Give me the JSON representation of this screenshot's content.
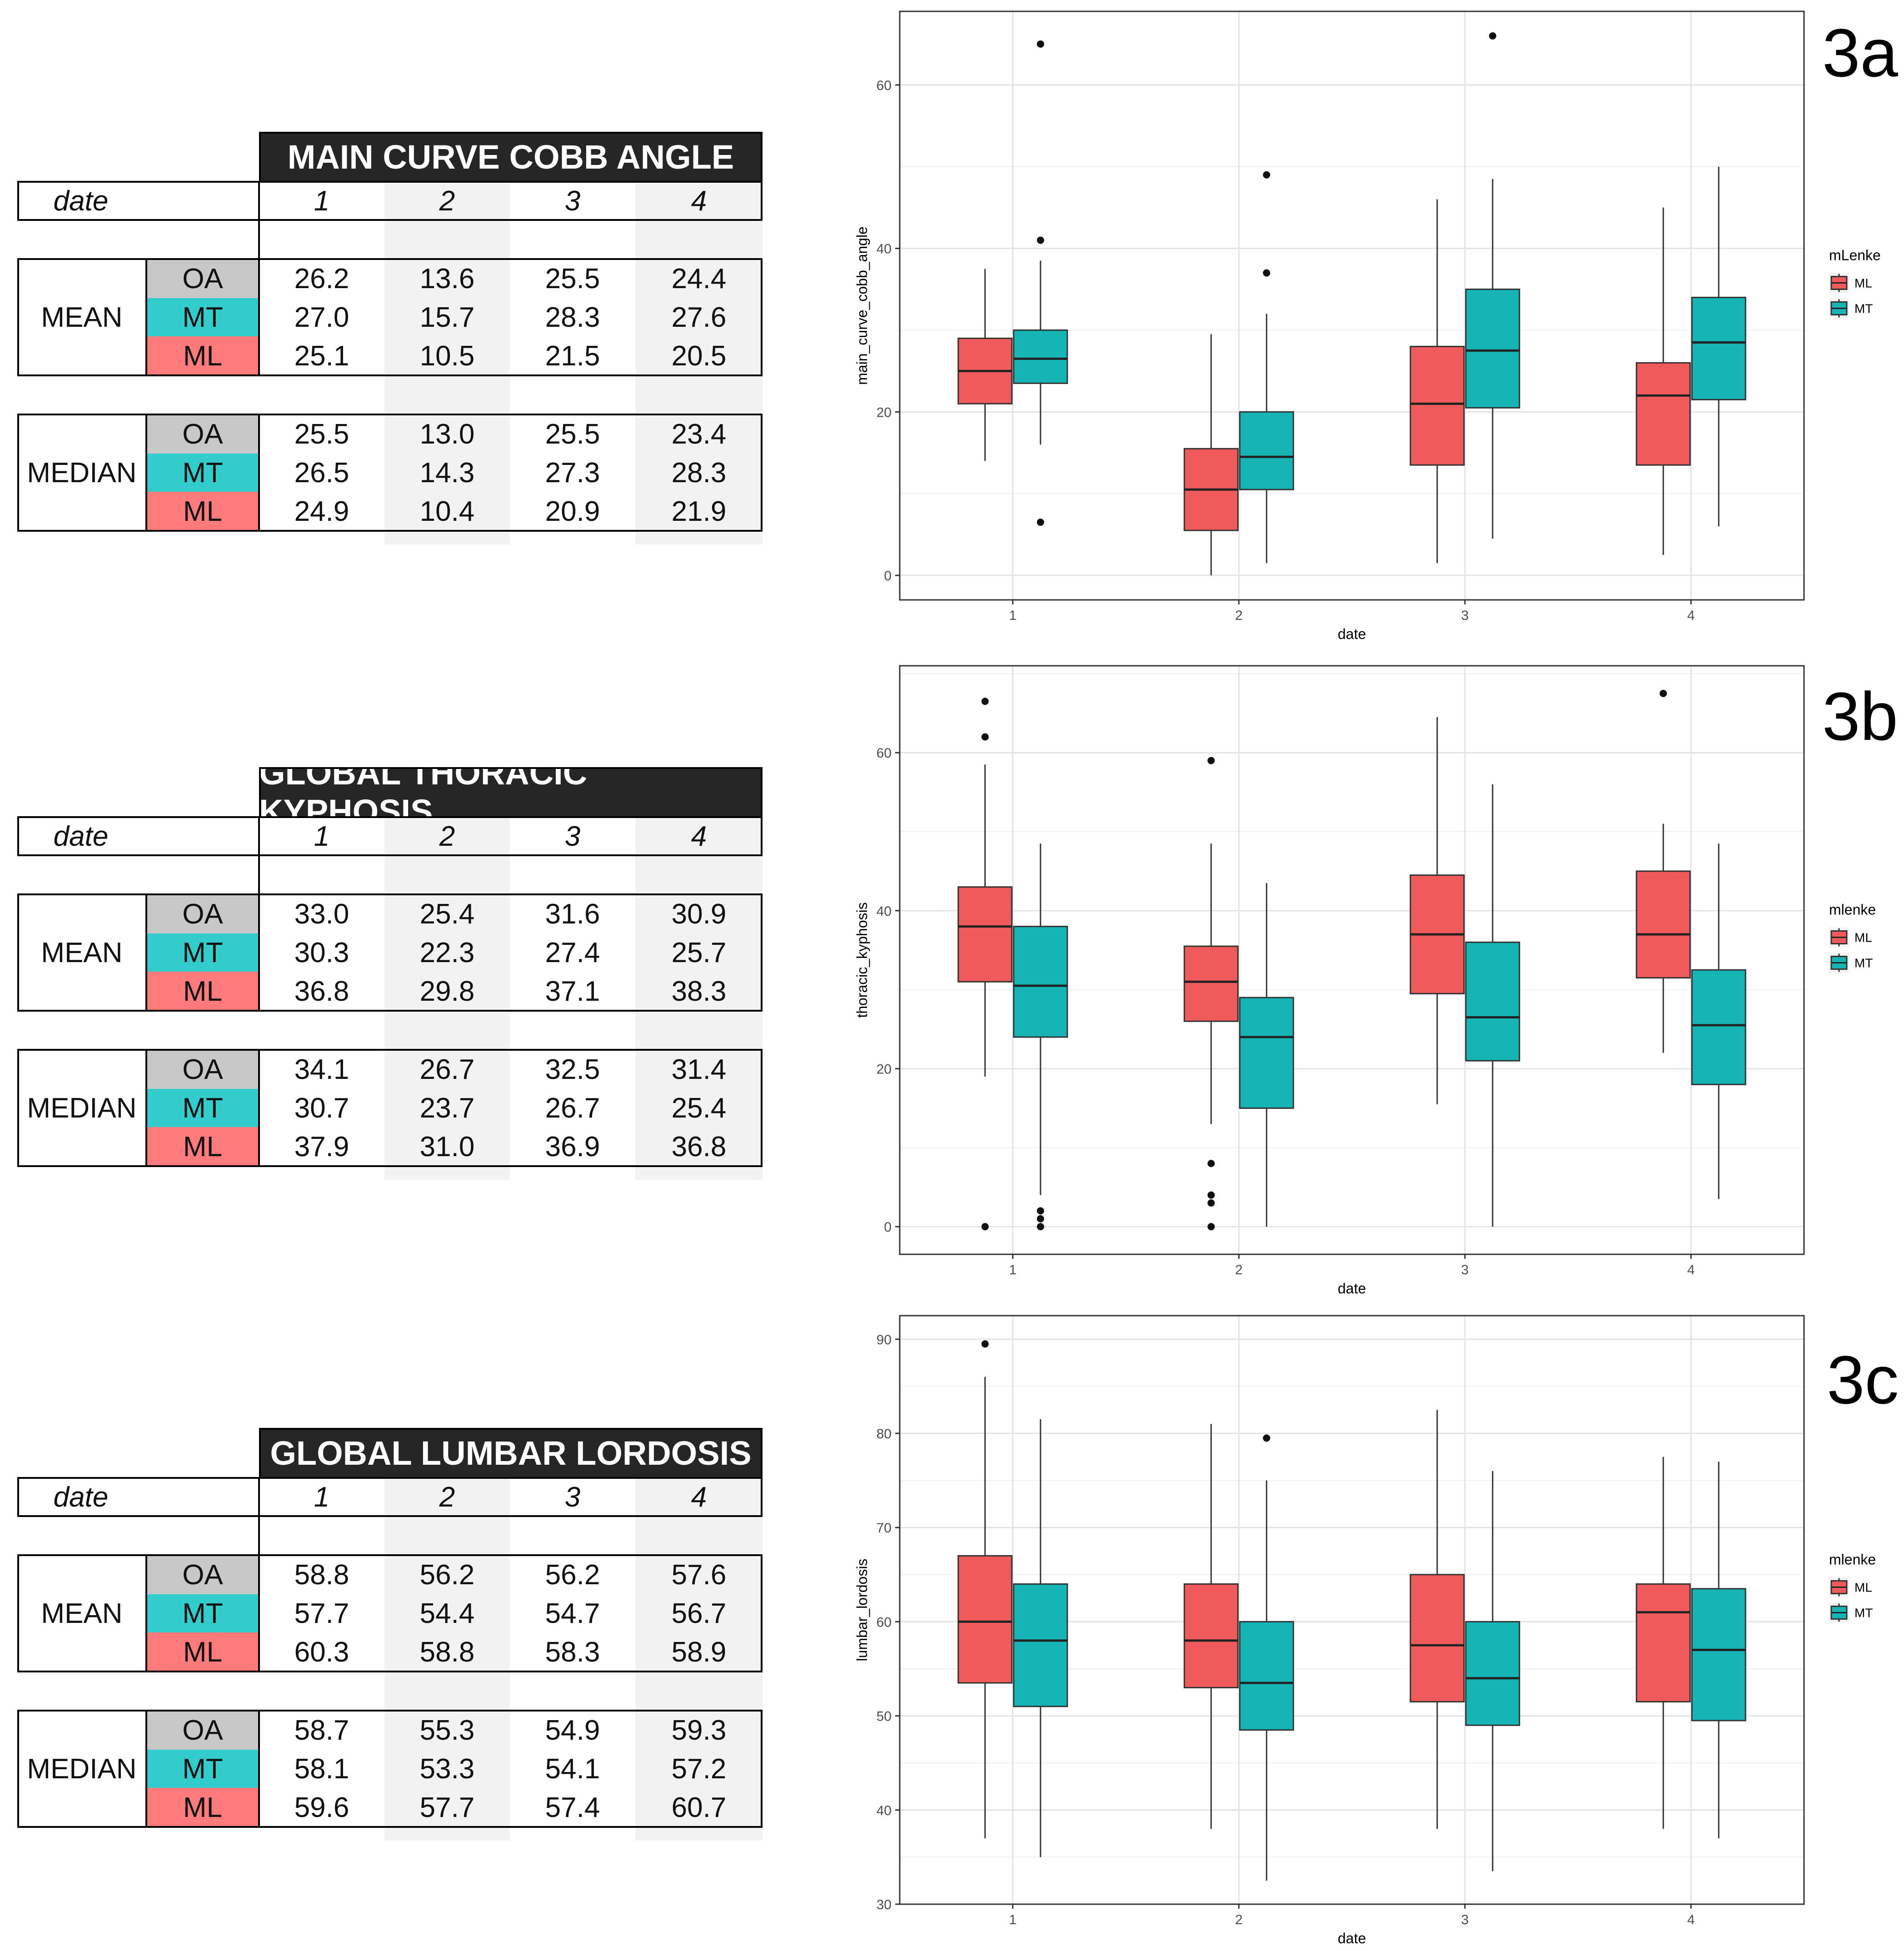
{
  "colors": {
    "ML": "#f15a5a",
    "MT": "#17b4b6",
    "title_bg": "#262626",
    "OA_label": "#c8c8c8",
    "MT_label": "#33cccc",
    "ML_label": "#ff7b7b",
    "shade": "#f2f2f2"
  },
  "tables": [
    {
      "title": "MAIN CURVE COBB ANGLE",
      "date_label": "date",
      "dates": [
        "1",
        "2",
        "3",
        "4"
      ],
      "groups": [
        {
          "name": "MEAN",
          "rows": [
            {
              "label": "OA",
              "values": [
                "26.2",
                "13.6",
                "25.5",
                "24.4"
              ]
            },
            {
              "label": "MT",
              "values": [
                "27.0",
                "15.7",
                "28.3",
                "27.6"
              ]
            },
            {
              "label": "ML",
              "values": [
                "25.1",
                "10.5",
                "21.5",
                "20.5"
              ]
            }
          ]
        },
        {
          "name": "MEDIAN",
          "rows": [
            {
              "label": "OA",
              "values": [
                "25.5",
                "13.0",
                "25.5",
                "23.4"
              ]
            },
            {
              "label": "MT",
              "values": [
                "26.5",
                "14.3",
                "27.3",
                "28.3"
              ]
            },
            {
              "label": "ML",
              "values": [
                "24.9",
                "10.4",
                "20.9",
                "21.9"
              ]
            }
          ]
        }
      ]
    },
    {
      "title": "GLOBAL THORACIC KYPHOSIS",
      "date_label": "date",
      "dates": [
        "1",
        "2",
        "3",
        "4"
      ],
      "groups": [
        {
          "name": "MEAN",
          "rows": [
            {
              "label": "OA",
              "values": [
                "33.0",
                "25.4",
                "31.6",
                "30.9"
              ]
            },
            {
              "label": "MT",
              "values": [
                "30.3",
                "22.3",
                "27.4",
                "25.7"
              ]
            },
            {
              "label": "ML",
              "values": [
                "36.8",
                "29.8",
                "37.1",
                "38.3"
              ]
            }
          ]
        },
        {
          "name": "MEDIAN",
          "rows": [
            {
              "label": "OA",
              "values": [
                "34.1",
                "26.7",
                "32.5",
                "31.4"
              ]
            },
            {
              "label": "MT",
              "values": [
                "30.7",
                "23.7",
                "26.7",
                "25.4"
              ]
            },
            {
              "label": "ML",
              "values": [
                "37.9",
                "31.0",
                "36.9",
                "36.8"
              ]
            }
          ]
        }
      ]
    },
    {
      "title": "GLOBAL LUMBAR LORDOSIS",
      "date_label": "date",
      "dates": [
        "1",
        "2",
        "3",
        "4"
      ],
      "groups": [
        {
          "name": "MEAN",
          "rows": [
            {
              "label": "OA",
              "values": [
                "58.8",
                "56.2",
                "56.2",
                "57.6"
              ]
            },
            {
              "label": "MT",
              "values": [
                "57.7",
                "54.4",
                "54.7",
                "56.7"
              ]
            },
            {
              "label": "ML",
              "values": [
                "60.3",
                "58.8",
                "58.3",
                "58.9"
              ]
            }
          ]
        },
        {
          "name": "MEDIAN",
          "rows": [
            {
              "label": "OA",
              "values": [
                "58.7",
                "55.3",
                "54.9",
                "59.3"
              ]
            },
            {
              "label": "MT",
              "values": [
                "58.1",
                "53.3",
                "54.1",
                "57.2"
              ]
            },
            {
              "label": "ML",
              "values": [
                "59.6",
                "57.7",
                "57.4",
                "60.7"
              ]
            }
          ]
        }
      ]
    }
  ],
  "chart_data": [
    {
      "type": "boxplot",
      "figure_label": "3a",
      "xlabel": "date",
      "ylabel": "main_curve_cobb_angle",
      "categories": [
        "1",
        "2",
        "3",
        "4"
      ],
      "ylim": [
        -3,
        69
      ],
      "yticks": [
        0,
        20,
        40,
        60
      ],
      "legend": {
        "title": "mLenke",
        "entries": [
          "ML",
          "MT"
        ],
        "position": "right"
      },
      "series": [
        {
          "name": "ML",
          "boxes": [
            {
              "min": 14,
              "q1": 21,
              "median": 25,
              "q3": 29,
              "max": 37.5,
              "outliers": []
            },
            {
              "min": 0,
              "q1": 5.5,
              "median": 10.5,
              "q3": 15.5,
              "max": 29.5,
              "outliers": []
            },
            {
              "min": 1.5,
              "q1": 13.5,
              "median": 21,
              "q3": 28,
              "max": 46,
              "outliers": []
            },
            {
              "min": 2.5,
              "q1": 13.5,
              "median": 22,
              "q3": 26,
              "max": 45,
              "outliers": []
            }
          ]
        },
        {
          "name": "MT",
          "boxes": [
            {
              "min": 16,
              "q1": 23.5,
              "median": 26.5,
              "q3": 30,
              "max": 38.5,
              "outliers": [
                65,
                41,
                6.5
              ]
            },
            {
              "min": 1.5,
              "q1": 10.5,
              "median": 14.5,
              "q3": 20,
              "max": 32,
              "outliers": [
                49,
                37
              ]
            },
            {
              "min": 4.5,
              "q1": 20.5,
              "median": 27.5,
              "q3": 35,
              "max": 48.5,
              "outliers": [
                66
              ]
            },
            {
              "min": 6,
              "q1": 21.5,
              "median": 28.5,
              "q3": 34,
              "max": 50,
              "outliers": []
            }
          ]
        }
      ]
    },
    {
      "type": "boxplot",
      "figure_label": "3b",
      "xlabel": "date",
      "ylabel": "thoracic_kyphosis",
      "categories": [
        "1",
        "2",
        "3",
        "4"
      ],
      "ylim": [
        -3.5,
        71
      ],
      "yticks": [
        0,
        20,
        40,
        60
      ],
      "legend": {
        "title": "mlenke",
        "entries": [
          "ML",
          "MT"
        ],
        "position": "right"
      },
      "series": [
        {
          "name": "ML",
          "boxes": [
            {
              "min": 19,
              "q1": 31,
              "median": 38,
              "q3": 43,
              "max": 58.5,
              "outliers": [
                66.5,
                62,
                0
              ]
            },
            {
              "min": 13,
              "q1": 26,
              "median": 31,
              "q3": 35.5,
              "max": 48.5,
              "outliers": [
                59,
                8,
                4,
                3,
                0
              ]
            },
            {
              "min": 15.5,
              "q1": 29.5,
              "median": 37,
              "q3": 44.5,
              "max": 64.5,
              "outliers": []
            },
            {
              "min": 22,
              "q1": 31.5,
              "median": 37,
              "q3": 45,
              "max": 51,
              "outliers": [
                67.5
              ]
            }
          ]
        },
        {
          "name": "MT",
          "boxes": [
            {
              "min": 4,
              "q1": 24,
              "median": 30.5,
              "q3": 38,
              "max": 48.5,
              "outliers": [
                2,
                1,
                0
              ]
            },
            {
              "min": 0,
              "q1": 15,
              "median": 24,
              "q3": 29,
              "max": 43.5,
              "outliers": []
            },
            {
              "min": 0,
              "q1": 21,
              "median": 26.5,
              "q3": 36,
              "max": 56,
              "outliers": []
            },
            {
              "min": 3.5,
              "q1": 18,
              "median": 25.5,
              "q3": 32.5,
              "max": 48.5,
              "outliers": []
            }
          ]
        }
      ]
    },
    {
      "type": "boxplot",
      "figure_label": "3c",
      "xlabel": "date",
      "ylabel": "lumbar_lordosis",
      "categories": [
        "1",
        "2",
        "3",
        "4"
      ],
      "ylim": [
        30,
        92.5
      ],
      "yticks": [
        30,
        40,
        50,
        60,
        70,
        80,
        90
      ],
      "legend": {
        "title": "mlenke",
        "entries": [
          "ML",
          "MT"
        ],
        "position": "right"
      },
      "series": [
        {
          "name": "ML",
          "boxes": [
            {
              "min": 37,
              "q1": 53.5,
              "median": 60,
              "q3": 67,
              "max": 86,
              "outliers": [
                89.5
              ]
            },
            {
              "min": 38,
              "q1": 53,
              "median": 58,
              "q3": 64,
              "max": 81,
              "outliers": []
            },
            {
              "min": 38,
              "q1": 51.5,
              "median": 57.5,
              "q3": 65,
              "max": 82.5,
              "outliers": []
            },
            {
              "min": 38,
              "q1": 51.5,
              "median": 61,
              "q3": 64,
              "max": 77.5,
              "outliers": []
            }
          ]
        },
        {
          "name": "MT",
          "boxes": [
            {
              "min": 35,
              "q1": 51,
              "median": 58,
              "q3": 64,
              "max": 81.5,
              "outliers": []
            },
            {
              "min": 32.5,
              "q1": 48.5,
              "median": 53.5,
              "q3": 60,
              "max": 75,
              "outliers": [
                79.5
              ]
            },
            {
              "min": 33.5,
              "q1": 49,
              "median": 54,
              "q3": 60,
              "max": 76,
              "outliers": []
            },
            {
              "min": 37,
              "q1": 49.5,
              "median": 57,
              "q3": 63.5,
              "max": 77,
              "outliers": []
            }
          ]
        }
      ]
    }
  ]
}
